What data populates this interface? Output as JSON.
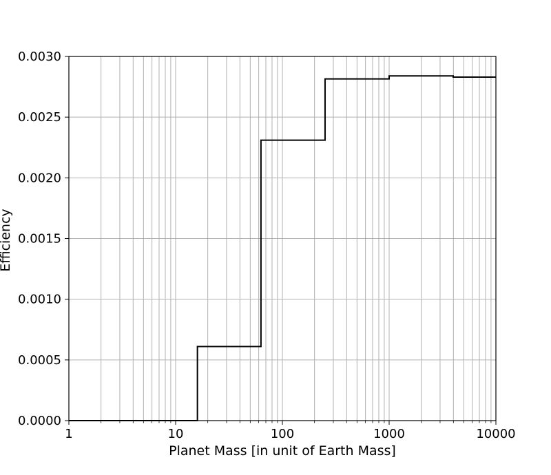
{
  "chart_data": {
    "type": "line",
    "step": "post",
    "title": "",
    "xlabel": "Planet Mass [in unit of Earth Mass]",
    "ylabel": "Efficiency",
    "xscale": "log",
    "xlim": [
      1,
      10000
    ],
    "ylim": [
      0,
      0.003
    ],
    "grid": true,
    "grid_minor": true,
    "line_color": "#000000",
    "grid_color": "#b0b0b0",
    "x_ticks": [
      {
        "value": 1,
        "label": "1"
      },
      {
        "value": 10,
        "label": "10"
      },
      {
        "value": 100,
        "label": "100"
      },
      {
        "value": 1000,
        "label": "1000"
      },
      {
        "value": 10000,
        "label": "10000"
      }
    ],
    "y_ticks": [
      {
        "value": 0,
        "label": "0.0000"
      },
      {
        "value": 0.0005,
        "label": "0.0005"
      },
      {
        "value": 0.001,
        "label": "0.0010"
      },
      {
        "value": 0.0015,
        "label": "0.0015"
      },
      {
        "value": 0.002,
        "label": "0.0020"
      },
      {
        "value": 0.0025,
        "label": "0.0025"
      },
      {
        "value": 0.003,
        "label": "0.0030"
      }
    ],
    "series": [
      {
        "bin_edges": [
          1,
          16,
          63,
          251,
          1000,
          3981,
          10000
        ],
        "values": [
          0.0,
          0.00061,
          0.00231,
          0.002815,
          0.00284,
          0.00283
        ]
      }
    ]
  }
}
